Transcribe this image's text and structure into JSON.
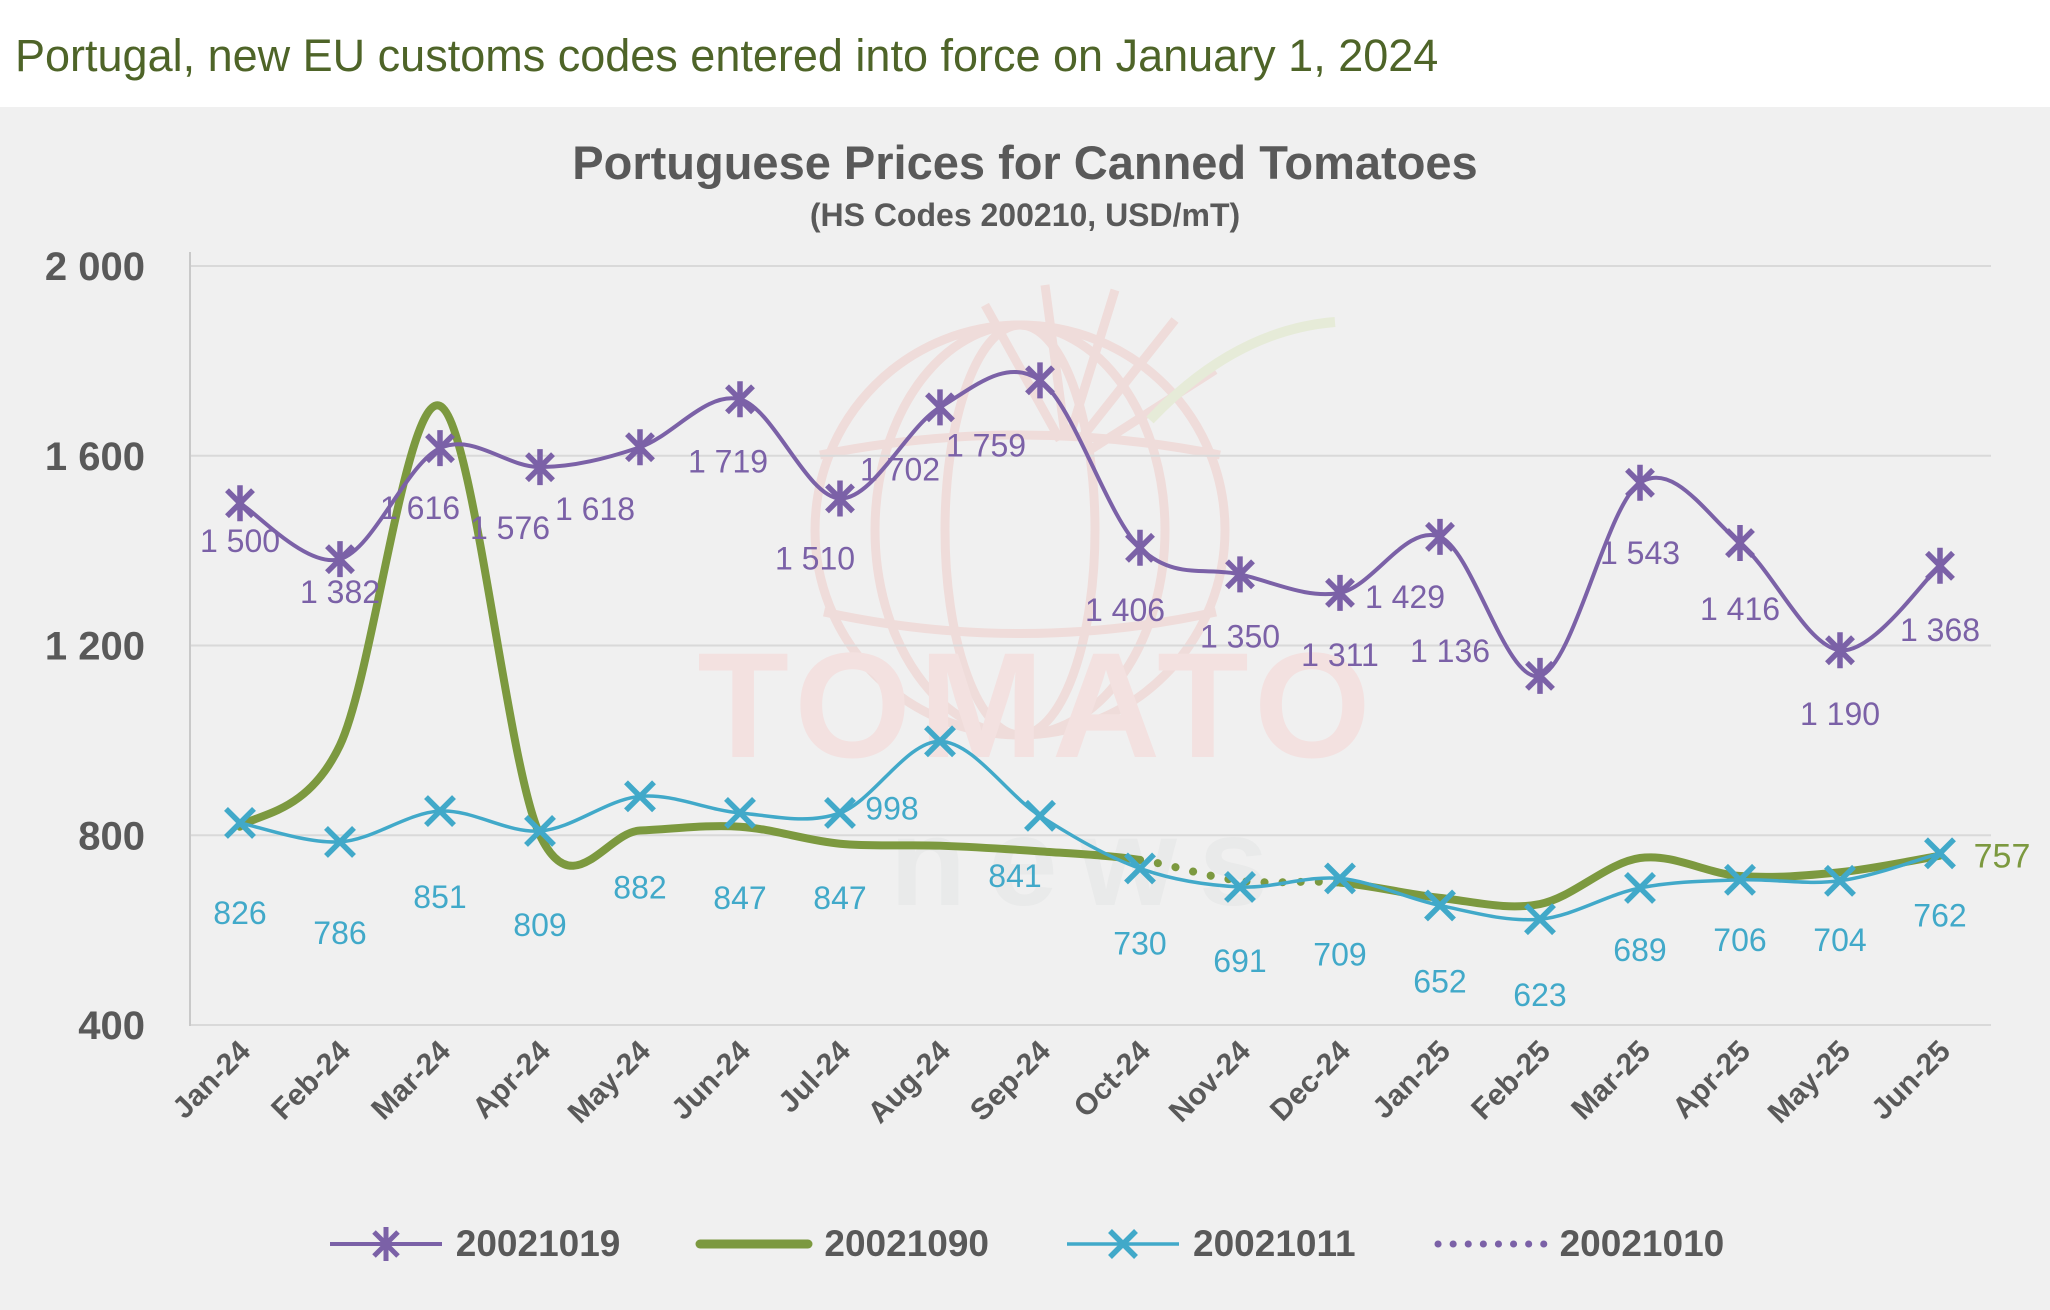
{
  "header": {
    "title": "Portugal, new EU customs codes entered into force on January 1, 2024"
  },
  "chart": {
    "title": "Portuguese Prices for Canned Tomatoes",
    "subtitle": "(HS Codes 200210, USD/mT)"
  },
  "watermark": {
    "line1": "TOMATO",
    "line2": "news"
  },
  "chart_data": {
    "type": "line",
    "title": "Portuguese Prices for Canned Tomatoes",
    "subtitle": "(HS Codes 200210, USD/mT)",
    "categories": [
      "Jan-24",
      "Feb-24",
      "Mar-24",
      "Apr-24",
      "May-24",
      "Jun-24",
      "Jul-24",
      "Aug-24",
      "Sep-24",
      "Oct-24",
      "Nov-24",
      "Dec-24",
      "Jan-25",
      "Feb-25",
      "Mar-25",
      "Apr-25",
      "May-25",
      "Jun-25"
    ],
    "ylim": [
      400,
      2000
    ],
    "ytick_values": [
      400,
      800,
      1200,
      1600,
      2000
    ],
    "ytick_labels": [
      "400",
      "800",
      "1 200",
      "1 600",
      "2 000"
    ],
    "grid": "horizontal",
    "x_label_rotation": -45,
    "legend_position": "bottom",
    "axis_color": "#595959",
    "grid_color": "#D9D9D9",
    "series": [
      {
        "name": "20021019",
        "color": "#7B61A7",
        "marker": "asterisk",
        "line_style": "solid",
        "values": [
          1500,
          1382,
          1616,
          1576,
          1618,
          1719,
          1510,
          1702,
          1759,
          1406,
          1350,
          1311,
          1429,
          1136,
          1543,
          1416,
          1190,
          1368
        ],
        "labels": [
          "1 500",
          "1 382",
          "1 616",
          "1 576",
          "1 618",
          "1 719",
          "1 510",
          "1 702",
          "1 759",
          "1 406",
          "1 350",
          "1 311",
          "1 429",
          "1 136",
          "1 543",
          "1 416",
          "1 190",
          "1 368"
        ],
        "label_dx": [
          0,
          0,
          -20,
          -30,
          -45,
          -12,
          -25,
          -40,
          -54,
          -15,
          0,
          0,
          -35,
          -90,
          0,
          0,
          0,
          0
        ],
        "label_dy": [
          38,
          33,
          60,
          61,
          62,
          62,
          60,
          62,
          65,
          62,
          62,
          62,
          60,
          -25,
          70,
          66,
          64,
          64
        ]
      },
      {
        "name": "20021090",
        "color": "#7C993F",
        "marker": "none",
        "line_style": "solid",
        "line_width": 8,
        "values": [
          818,
          990,
          1705,
          800,
          810,
          818,
          782,
          778,
          766,
          748,
          704,
          700,
          668,
          655,
          752,
          714,
          722,
          757
        ],
        "values_note": "series is unlabeled in the chart; values estimated from line position except the final labeled point 757",
        "dotted_segment": {
          "from": "Oct-24",
          "to": "Dec-24"
        },
        "end_label": "757"
      },
      {
        "name": "20021011",
        "color": "#41A9C9",
        "marker": "x",
        "line_style": "solid",
        "values": [
          826,
          786,
          851,
          809,
          882,
          847,
          847,
          998,
          841,
          730,
          691,
          709,
          652,
          623,
          689,
          706,
          704,
          762
        ],
        "labels": [
          "826",
          "786",
          "851",
          "809",
          "882",
          "847",
          "847",
          "998",
          "841",
          "730",
          "691",
          "709",
          "652",
          "623",
          "689",
          "706",
          "704",
          "762"
        ],
        "label_dx": [
          0,
          0,
          0,
          0,
          0,
          0,
          0,
          -48,
          -25,
          0,
          0,
          0,
          0,
          0,
          0,
          0,
          0,
          0
        ],
        "label_dy": [
          90,
          91,
          86,
          94,
          91,
          85,
          85,
          67,
          60,
          75,
          74,
          76,
          76,
          76,
          62,
          60,
          59,
          62
        ]
      },
      {
        "name": "20021010",
        "color": "#7B61A7",
        "marker": "none",
        "line_style": "dotted",
        "values": [
          null,
          null,
          null,
          null,
          null,
          null,
          null,
          null,
          null,
          null,
          null,
          null,
          null,
          null,
          null,
          null,
          null,
          null
        ],
        "note": "shown in legend as a purple dotted line; in the plot the dotted Oct-24 to Dec-24 span runs along the 20021090 line"
      }
    ]
  },
  "legend": {
    "items": [
      "20021019",
      "20021090",
      "20021011",
      "20021010"
    ]
  }
}
